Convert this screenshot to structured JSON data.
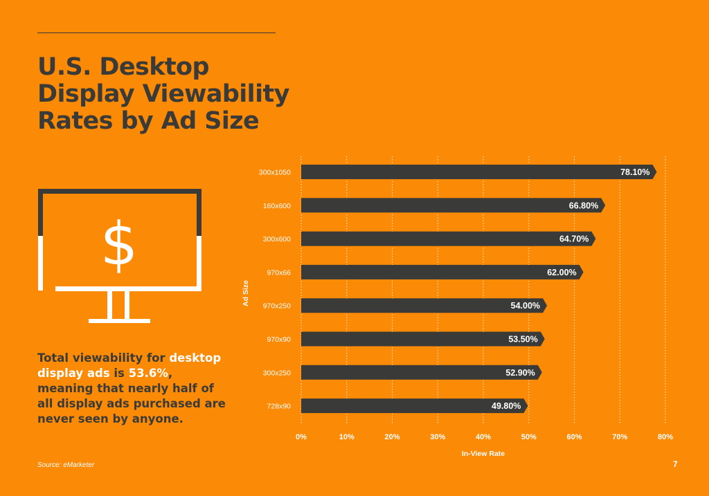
{
  "title": "U.S. Desktop Display Viewability Rates by Ad Size",
  "icon": "monitor-dollar-icon",
  "icon_glyph": "$",
  "body_text": {
    "part1": "Total viewability for ",
    "highlight1": "desktop display ads",
    "part2": " is ",
    "highlight2": "53.6%",
    "part3": ", meaning that nearly half of all display ads purchased are never seen by anyone."
  },
  "source": "Source: eMarketer",
  "page_number": "7",
  "colors": {
    "background": "#fb8a06",
    "bar": "#3a3a38",
    "highlight": "#ffffff",
    "text_dark": "#3a3a38"
  },
  "chart_data": {
    "type": "bar",
    "orientation": "horizontal",
    "categories": [
      "300x1050",
      "160x600",
      "300x600",
      "970x66",
      "970x250",
      "970x90",
      "300x250",
      "728x90"
    ],
    "values": [
      78.1,
      66.8,
      64.7,
      62.0,
      54.0,
      53.5,
      52.9,
      49.8
    ],
    "value_labels": [
      "78.10%",
      "66.80%",
      "64.70%",
      "62.00%",
      "54.00%",
      "53.50%",
      "52.90%",
      "49.80%"
    ],
    "xlabel": "In-View Rate",
    "ylabel": "Ad Size",
    "xlim": [
      0,
      80
    ],
    "xticks": [
      0,
      10,
      20,
      30,
      40,
      50,
      60,
      70,
      80
    ],
    "xtick_labels": [
      "0%",
      "10%",
      "20%",
      "30%",
      "40%",
      "50%",
      "60%",
      "70%",
      "80%"
    ],
    "grid": "vertical dotted"
  }
}
